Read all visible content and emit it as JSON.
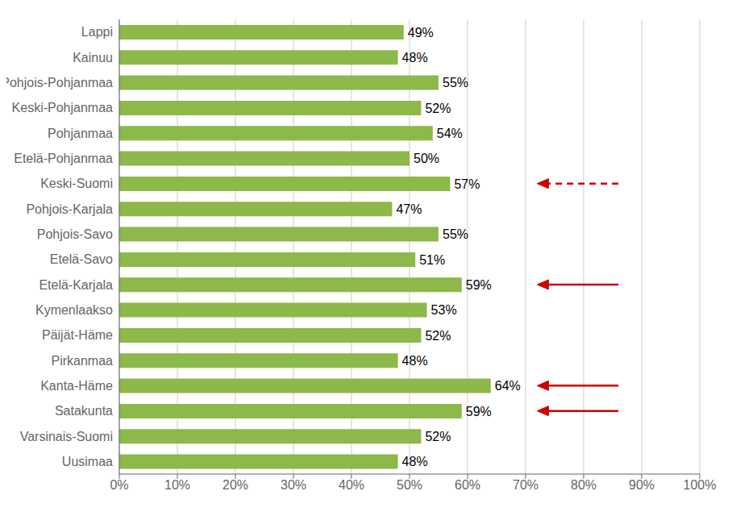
{
  "chart_data": {
    "type": "bar",
    "orientation": "horizontal",
    "categories": [
      "Uusimaa",
      "Varsinais-Suomi",
      "Satakunta",
      "Kanta-Häme",
      "Pirkanmaa",
      "Päijät-Häme",
      "Kymenlaakso",
      "Etelä-Karjala",
      "Etelä-Savo",
      "Pohjois-Savo",
      "Pohjois-Karjala",
      "Keski-Suomi",
      "Etelä-Pohjanmaa",
      "Pohjanmaa",
      "Keski-Pohjanmaa",
      "Pohjois-Pohjanmaa",
      "Kainuu",
      "Lappi"
    ],
    "values": [
      48,
      52,
      59,
      64,
      48,
      52,
      53,
      59,
      51,
      55,
      47,
      57,
      50,
      54,
      52,
      55,
      48,
      49
    ],
    "value_labels": [
      "48%",
      "52%",
      "59%",
      "64%",
      "48%",
      "52%",
      "53%",
      "59%",
      "51%",
      "55%",
      "47%",
      "57%",
      "50%",
      "54%",
      "52%",
      "55%",
      "48%",
      "49%"
    ],
    "data_labels": true,
    "color": "#8db84a",
    "xlim": [
      0,
      100
    ],
    "xticks": [
      {
        "value": 0,
        "label": "0%"
      },
      {
        "value": 10,
        "label": "10%"
      },
      {
        "value": 20,
        "label": "20%"
      },
      {
        "value": 30,
        "label": "30%"
      },
      {
        "value": 40,
        "label": "40%"
      },
      {
        "value": 50,
        "label": "50%"
      },
      {
        "value": 60,
        "label": "60%"
      },
      {
        "value": 70,
        "label": "70%"
      },
      {
        "value": 80,
        "label": "80%"
      },
      {
        "value": 90,
        "label": "90%"
      },
      {
        "value": 100,
        "label": "100%"
      }
    ],
    "grid": true,
    "annotations": [
      {
        "category": "Keski-Suomi",
        "x_tip": 72,
        "x_tail": 86,
        "line_style": "dashed",
        "color": "#cc0000"
      },
      {
        "category": "Etelä-Karjala",
        "x_tip": 72,
        "x_tail": 86,
        "line_style": "solid",
        "color": "#cc0000"
      },
      {
        "category": "Kanta-Häme",
        "x_tip": 72,
        "x_tail": 86,
        "line_style": "solid",
        "color": "#cc0000"
      },
      {
        "category": "Satakunta",
        "x_tip": 72,
        "x_tail": 86,
        "line_style": "solid",
        "color": "#cc0000"
      }
    ]
  }
}
